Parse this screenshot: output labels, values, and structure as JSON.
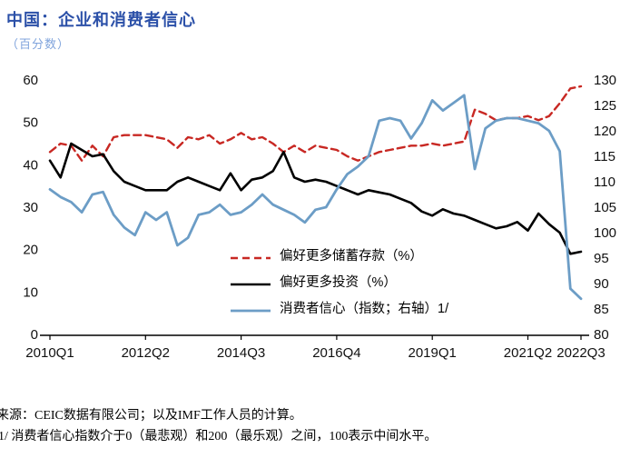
{
  "colors": {
    "title": "#2B50A8",
    "subtitle": "#7FA3DC",
    "axis_text": "#000000",
    "axis_line": "#000000"
  },
  "chart_data": {
    "type": "line",
    "title": "中国：企业和消费者信心",
    "subtitle": "（百分数）",
    "source": "来源：CEIC数据有限公司；以及IMF工作人员的计算。",
    "footnote": "1/ 消费者信心指数介于0（最悲观）和200（最乐观）之间，100表示中间水平。",
    "grid": false,
    "legend_position": "inside-lower-center",
    "x": [
      "2010Q1",
      "2010Q2",
      "2010Q3",
      "2010Q4",
      "2011Q1",
      "2011Q2",
      "2011Q3",
      "2011Q4",
      "2012Q1",
      "2012Q2",
      "2012Q3",
      "2012Q4",
      "2013Q1",
      "2013Q2",
      "2013Q3",
      "2013Q4",
      "2014Q1",
      "2014Q2",
      "2014Q3",
      "2014Q4",
      "2015Q1",
      "2015Q2",
      "2015Q3",
      "2015Q4",
      "2016Q1",
      "2016Q2",
      "2016Q3",
      "2016Q4",
      "2017Q1",
      "2017Q2",
      "2017Q3",
      "2017Q4",
      "2018Q1",
      "2018Q2",
      "2018Q3",
      "2018Q4",
      "2019Q1",
      "2019Q2",
      "2019Q3",
      "2019Q4",
      "2020Q1",
      "2020Q2",
      "2020Q3",
      "2020Q4",
      "2021Q1",
      "2021Q2",
      "2021Q3",
      "2021Q4",
      "2022Q1",
      "2022Q2",
      "2022Q3"
    ],
    "x_ticks": [
      {
        "label": "2010Q1",
        "index": 0
      },
      {
        "label": "2012Q2",
        "index": 9
      },
      {
        "label": "2014Q3",
        "index": 18
      },
      {
        "label": "2016Q4",
        "index": 27
      },
      {
        "label": "2019Q1",
        "index": 36
      },
      {
        "label": "2021Q2",
        "index": 45
      },
      {
        "label": "2022Q3",
        "index": 50
      }
    ],
    "left_axis": {
      "min": 0,
      "max": 60,
      "ticks": [
        0,
        10,
        20,
        30,
        40,
        50,
        60
      ]
    },
    "right_axis": {
      "min": 80,
      "max": 130,
      "ticks": [
        80,
        85,
        90,
        95,
        100,
        105,
        110,
        115,
        120,
        125,
        130
      ]
    },
    "series": [
      {
        "name": "偏好更多储蓄存款（%）",
        "axis": "left",
        "color": "#C82823",
        "dash": "8,5",
        "width": 2.4,
        "values": [
          43,
          45,
          44.5,
          41,
          44.5,
          42,
          46.5,
          47,
          47,
          47,
          46.5,
          46,
          44,
          46.5,
          46,
          47,
          45,
          46,
          47.5,
          46,
          46.5,
          45,
          43,
          44.5,
          43,
          44.5,
          44,
          43.5,
          42,
          41,
          42,
          43,
          43.5,
          44,
          44.5,
          44.5,
          45,
          44.5,
          45,
          45.5,
          53,
          52,
          50.5,
          51,
          51,
          51.5,
          50.5,
          51.5,
          54.5,
          58,
          58.5
        ]
      },
      {
        "name": "偏好更多投资（%）",
        "axis": "left",
        "color": "#000000",
        "dash": "",
        "width": 2.6,
        "values": [
          41,
          37,
          45,
          43.5,
          42,
          42.5,
          38.5,
          36,
          35,
          34,
          34,
          34,
          36,
          37,
          36,
          35,
          34,
          38,
          34,
          36.5,
          37,
          38.5,
          43,
          37,
          36,
          36.5,
          36,
          35,
          34,
          33,
          34,
          33.5,
          33,
          32,
          31,
          29,
          28,
          29.5,
          28.5,
          28,
          27,
          26,
          25,
          25.5,
          26.5,
          24.5,
          28.5,
          26,
          24,
          19,
          19.5
        ]
      },
      {
        "name": "消费者信心（指数；右轴）1/",
        "axis": "right",
        "color": "#6C9DC6",
        "dash": "",
        "width": 2.8,
        "values": [
          108.5,
          107,
          106,
          104,
          107.5,
          108,
          103.5,
          101,
          99.5,
          104,
          102.5,
          104,
          97.5,
          99,
          103.5,
          104,
          105.5,
          103.5,
          104,
          105.5,
          107.5,
          105.5,
          104.5,
          103.5,
          102,
          104.5,
          105,
          108.5,
          111.5,
          113,
          115,
          122,
          122.5,
          122,
          118.5,
          121.5,
          126,
          124,
          125.5,
          127,
          112.5,
          120.5,
          122,
          122.5,
          122.5,
          122,
          121.5,
          120,
          116,
          89,
          87
        ]
      }
    ]
  }
}
